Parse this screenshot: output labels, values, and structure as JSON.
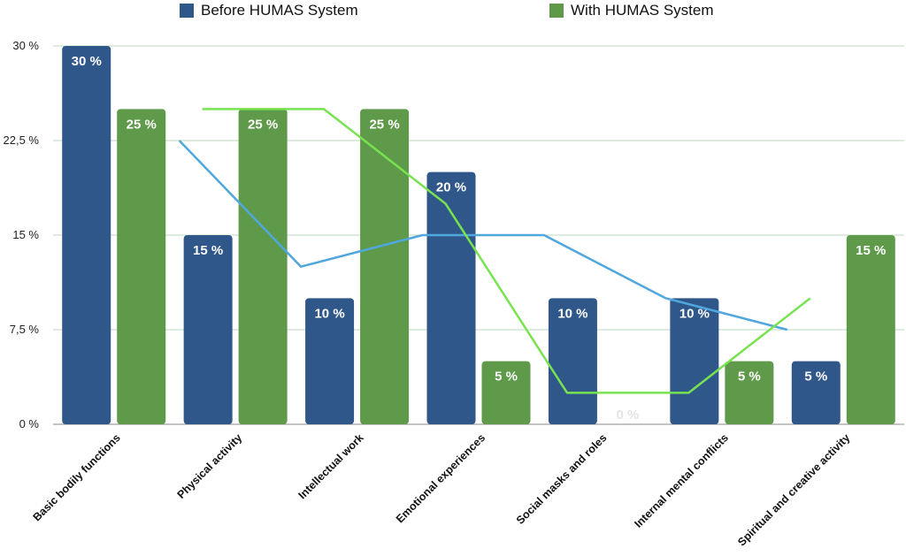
{
  "legend": {
    "before_label": "Before HUMAS System",
    "with_label": "With HUMAS System"
  },
  "colors": {
    "before_bar": "#2f5789",
    "with_bar": "#5e9a4a",
    "before_line": "#4fa7dd",
    "with_line": "#77e350",
    "grid": "#bcd7bf"
  },
  "chart_data": {
    "type": "bar",
    "categories": [
      "Basic bodily functions",
      "Physical activity",
      "Intellectual work",
      "Emotional experiences",
      "Social masks and roles",
      "Internal mental conflicts",
      "Spiritual and creative activity"
    ],
    "series": [
      {
        "name": "Before HUMAS System",
        "values": [
          30,
          15,
          10,
          20,
          10,
          10,
          5
        ],
        "labels": [
          "30 %",
          "15 %",
          "10 %",
          "20 %",
          "10 %",
          "10 %",
          "5 %"
        ]
      },
      {
        "name": "With HUMAS System",
        "values": [
          25,
          25,
          25,
          5,
          0,
          5,
          15
        ],
        "labels": [
          "25 %",
          "25 %",
          "25 %",
          "5 %",
          "0 %",
          "5 %",
          "15 %"
        ]
      }
    ],
    "trend_lines": [
      {
        "series": "Before HUMAS System",
        "points": [
          [
            1,
            22.5
          ],
          [
            2,
            12.5
          ],
          [
            3,
            15
          ],
          [
            4,
            15
          ],
          [
            5,
            10
          ],
          [
            6,
            7.5
          ]
        ]
      },
      {
        "series": "With HUMAS System",
        "points": [
          [
            1,
            25
          ],
          [
            2,
            25
          ],
          [
            3,
            17.5
          ],
          [
            4,
            2.5
          ],
          [
            5,
            2.5
          ],
          [
            6,
            10
          ]
        ]
      }
    ],
    "ylim": [
      0,
      30
    ],
    "yticks": [
      0,
      7.5,
      15,
      22.5,
      30
    ],
    "ytick_labels": [
      "0 %",
      "7,5 %",
      "15 %",
      "22,5 %",
      "30 %"
    ],
    "grid": true,
    "legend_position": "top"
  }
}
